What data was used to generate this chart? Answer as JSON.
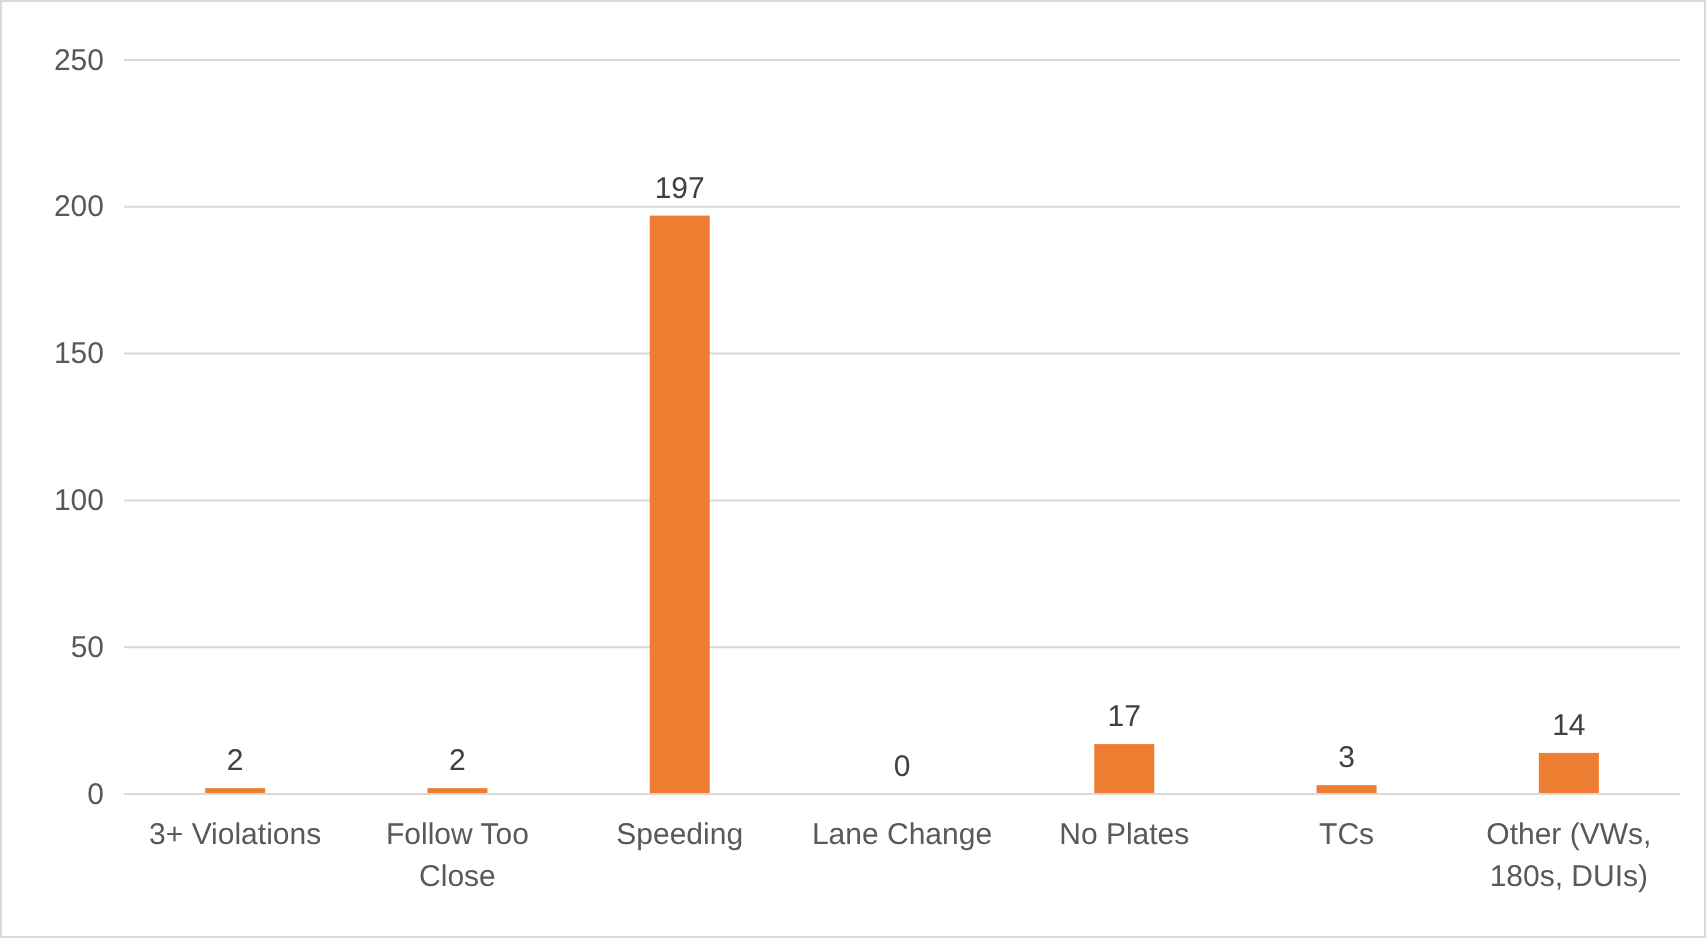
{
  "chart_data": {
    "type": "bar",
    "categories": [
      "3+ Violations",
      "Follow Too Close",
      "Speeding",
      "Lane Change",
      "No Plates",
      "TCs",
      "Other (VWs, 180s, DUIs)"
    ],
    "values": [
      2,
      2,
      197,
      0,
      17,
      3,
      14
    ],
    "color": "#ed7d31",
    "ylim": [
      0,
      250
    ],
    "yticks": [
      0,
      50,
      100,
      150,
      200,
      250
    ],
    "grid": "y",
    "data_labels": true
  }
}
